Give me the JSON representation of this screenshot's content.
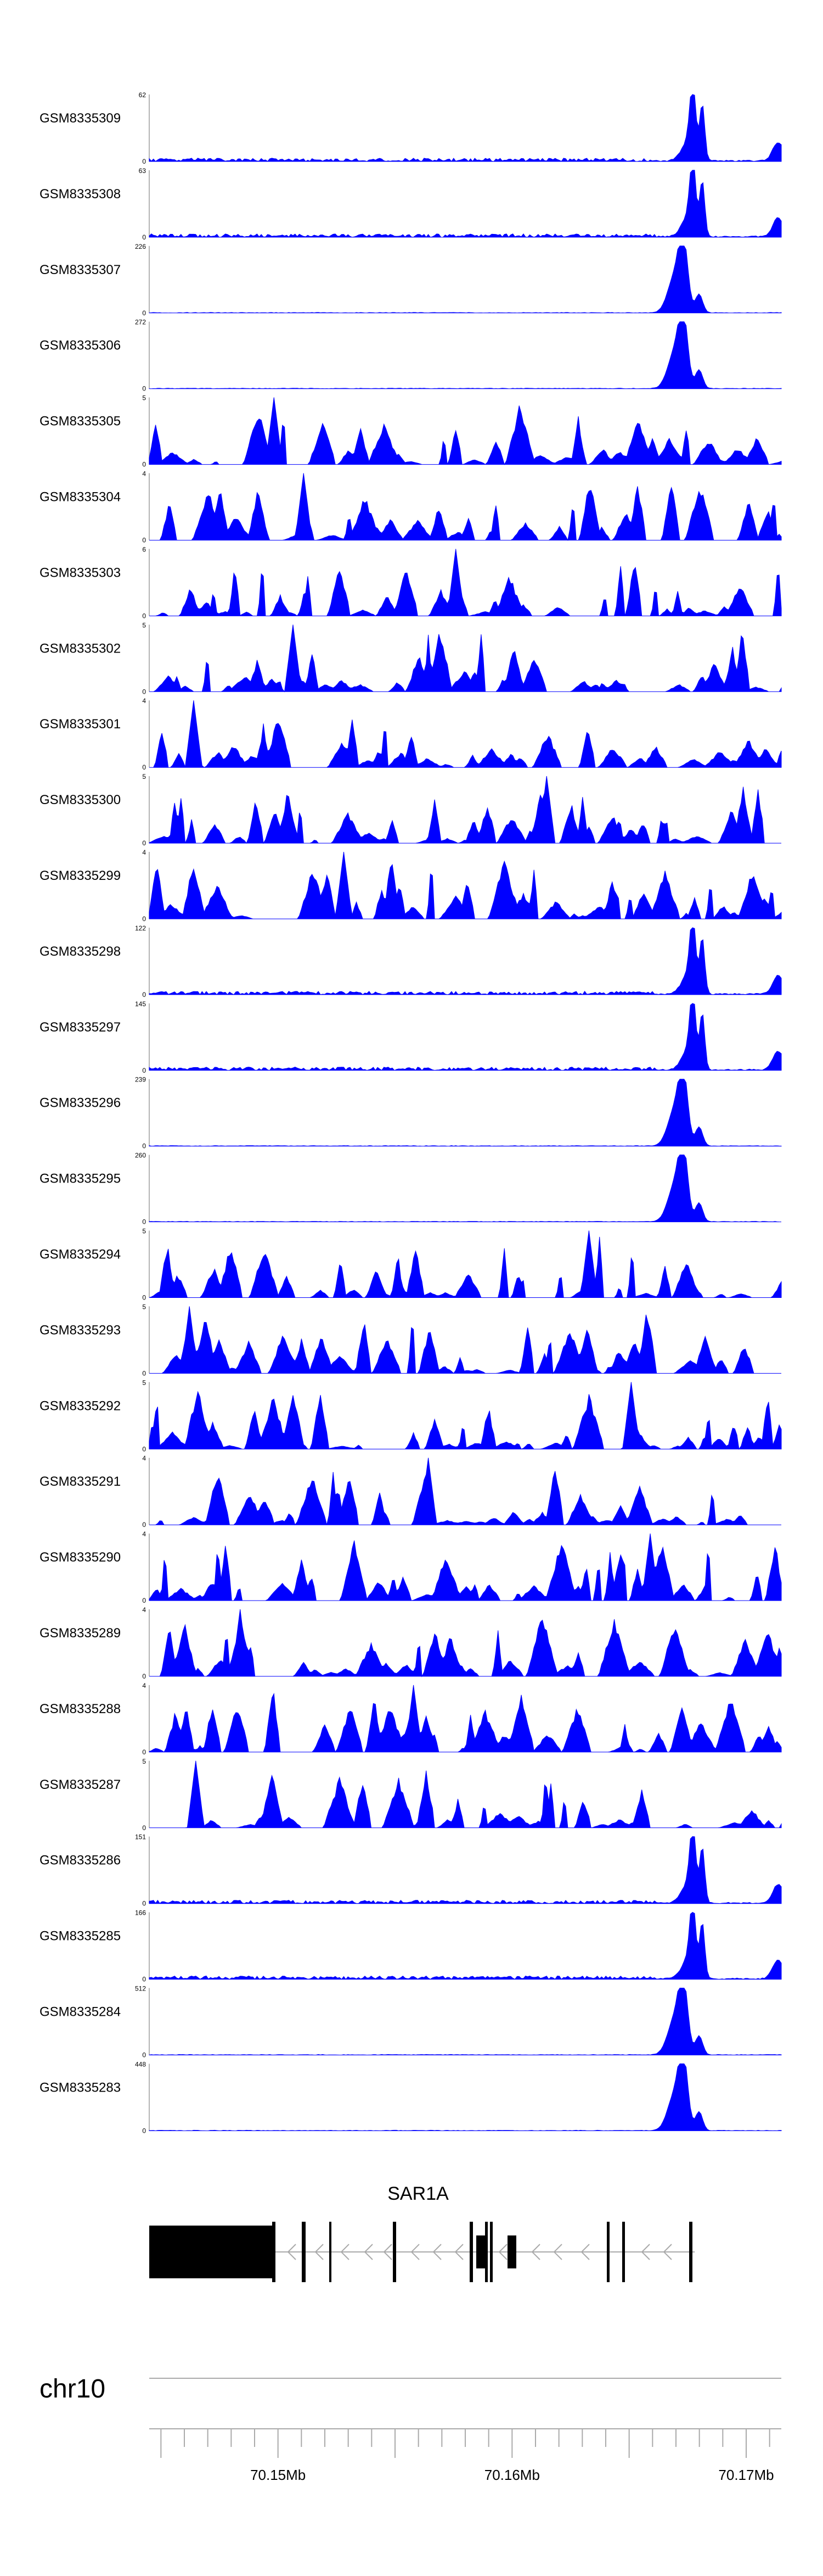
{
  "chart_data": {
    "type": "area",
    "color": "#0000ff",
    "series": [
      {
        "name": "GSM8335309",
        "ymax": 62,
        "profile": "peak_sharp",
        "seed": 309
      },
      {
        "name": "GSM8335308",
        "ymax": 63,
        "profile": "peak_sharp",
        "seed": 308
      },
      {
        "name": "GSM8335307",
        "ymax": 226,
        "profile": "peak_broad",
        "seed": 307
      },
      {
        "name": "GSM8335306",
        "ymax": 272,
        "profile": "peak_broad",
        "seed": 306
      },
      {
        "name": "GSM8335305",
        "ymax": 5,
        "profile": "noise",
        "seed": 305
      },
      {
        "name": "GSM8335304",
        "ymax": 4,
        "profile": "noise",
        "seed": 304
      },
      {
        "name": "GSM8335303",
        "ymax": 6,
        "profile": "noise",
        "seed": 303
      },
      {
        "name": "GSM8335302",
        "ymax": 5,
        "profile": "noise",
        "seed": 302
      },
      {
        "name": "GSM8335301",
        "ymax": 4,
        "profile": "noise",
        "seed": 301
      },
      {
        "name": "GSM8335300",
        "ymax": 5,
        "profile": "noise",
        "seed": 300
      },
      {
        "name": "GSM8335299",
        "ymax": 4,
        "profile": "noise",
        "seed": 299
      },
      {
        "name": "GSM8335298",
        "ymax": 122,
        "profile": "peak_sharp",
        "seed": 298
      },
      {
        "name": "GSM8335297",
        "ymax": 145,
        "profile": "peak_sharp",
        "seed": 297
      },
      {
        "name": "GSM8335296",
        "ymax": 239,
        "profile": "peak_broad",
        "seed": 296
      },
      {
        "name": "GSM8335295",
        "ymax": 260,
        "profile": "peak_broad",
        "seed": 295
      },
      {
        "name": "GSM8335294",
        "ymax": 5,
        "profile": "noise",
        "seed": 294
      },
      {
        "name": "GSM8335293",
        "ymax": 5,
        "profile": "noise",
        "seed": 293
      },
      {
        "name": "GSM8335292",
        "ymax": 5,
        "profile": "noise",
        "seed": 292
      },
      {
        "name": "GSM8335291",
        "ymax": 4,
        "profile": "noise",
        "seed": 291
      },
      {
        "name": "GSM8335290",
        "ymax": 4,
        "profile": "noise",
        "seed": 290
      },
      {
        "name": "GSM8335289",
        "ymax": 4,
        "profile": "noise",
        "seed": 289
      },
      {
        "name": "GSM8335288",
        "ymax": 4,
        "profile": "noise",
        "seed": 288
      },
      {
        "name": "GSM8335287",
        "ymax": 5,
        "profile": "noise",
        "seed": 287
      },
      {
        "name": "GSM8335286",
        "ymax": 151,
        "profile": "peak_sharp",
        "seed": 286
      },
      {
        "name": "GSM8335285",
        "ymax": 166,
        "profile": "peak_sharp",
        "seed": 285
      },
      {
        "name": "GSM8335284",
        "ymax": 512,
        "profile": "peak_broad",
        "seed": 284
      },
      {
        "name": "GSM8335283",
        "ymax": 448,
        "profile": "peak_broad",
        "seed": 283
      }
    ],
    "x_axis": {
      "chromosome": "chr10",
      "range_mb": [
        70.1445,
        70.1715
      ],
      "tick_labels": [
        {
          "value": 70.15,
          "label": "70.15Mb"
        },
        {
          "value": 70.16,
          "label": "70.16Mb"
        },
        {
          "value": 70.17,
          "label": "70.17Mb"
        }
      ]
    },
    "gene": {
      "name": "SAR1A",
      "strand": "-",
      "start_mb": 70.1445,
      "end_mb": 70.1678
    }
  }
}
